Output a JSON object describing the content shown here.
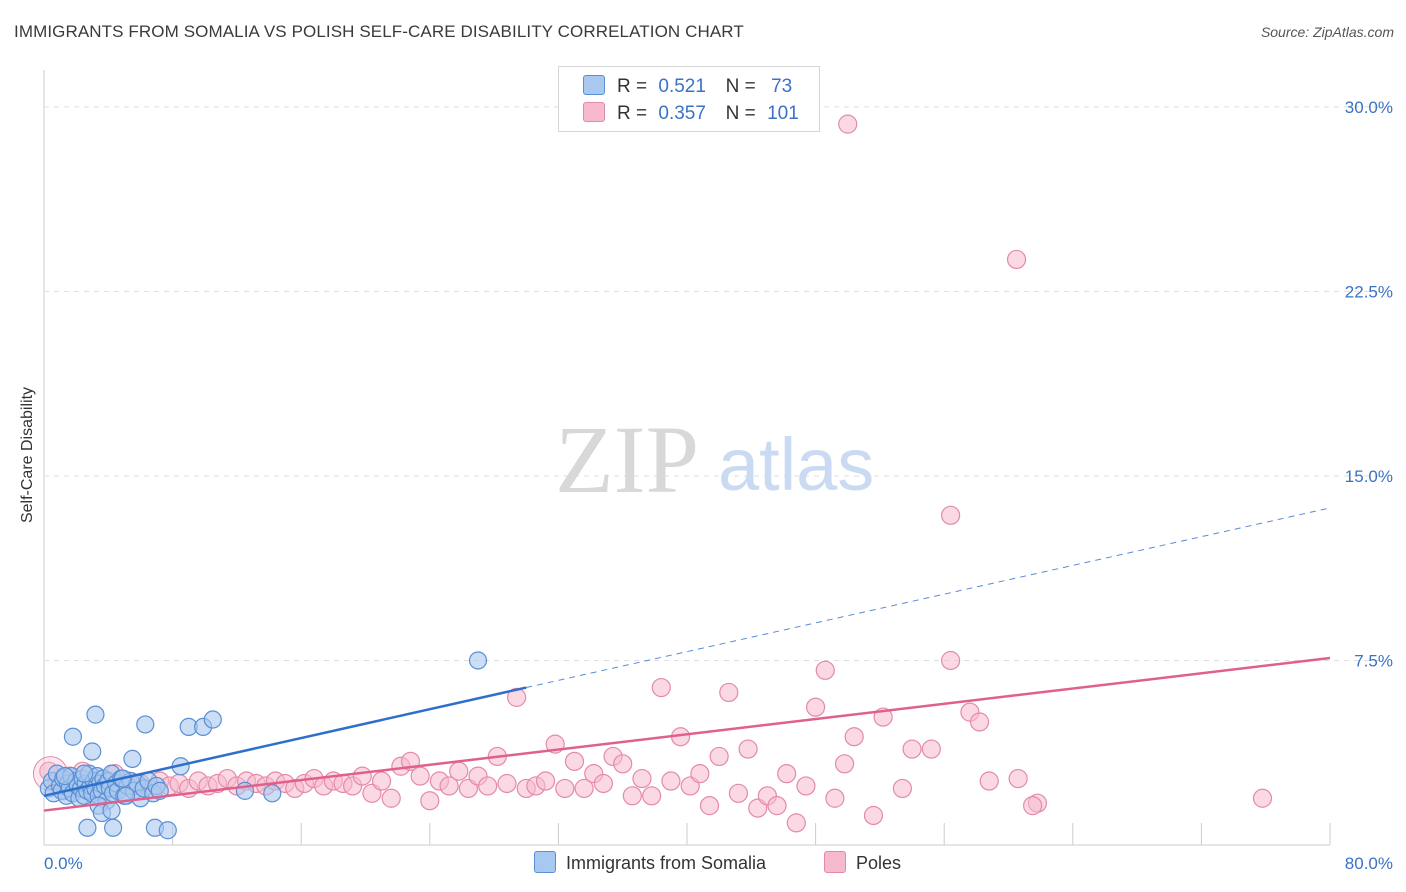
{
  "title": "IMMIGRANTS FROM SOMALIA VS POLISH SELF-CARE DISABILITY CORRELATION CHART",
  "source": "Source: ZipAtlas.com",
  "watermark": {
    "zip": "ZIP",
    "atlas": "atlas"
  },
  "legend": {
    "r_label": "R =",
    "n_label": "N =",
    "rows": [
      {
        "r": "0.521",
        "n": "73"
      },
      {
        "r": "0.357",
        "n": "101"
      }
    ]
  },
  "bottom_legend": [
    "Immigrants from Somalia",
    "Poles"
  ],
  "colors": {
    "somalia_fill": "#a9c8ef",
    "somalia_stroke": "#5a8fd6",
    "somalia_line": "#2f6fcc",
    "poles_fill": "#f7b9cd",
    "poles_stroke": "#e38aa8",
    "poles_line": "#e0608a",
    "grid": "#dddddd",
    "tick": "#3a72c6"
  },
  "chart_data": {
    "type": "scatter",
    "title": "IMMIGRANTS FROM SOMALIA VS POLISH SELF-CARE DISABILITY CORRELATION CHART",
    "xlabel": "",
    "ylabel": "Self-Care Disability",
    "xlim": [
      0,
      80
    ],
    "ylim": [
      0,
      31.5
    ],
    "x_ticks": [
      "0.0%",
      "80.0%"
    ],
    "y_ticks": [
      {
        "value": 7.5,
        "label": "7.5%"
      },
      {
        "value": 15.0,
        "label": "15.0%"
      },
      {
        "value": 22.5,
        "label": "22.5%"
      },
      {
        "value": 30.0,
        "label": "30.0%"
      }
    ],
    "grid": true,
    "legend_position": "top-center",
    "series": [
      {
        "name": "Immigrants from Somalia",
        "r": 0.521,
        "n": 73,
        "trend": {
          "x0": 0,
          "y0": 2.0,
          "x1": 30,
          "y1": 6.4,
          "x_dash_end": 80,
          "y_dash_end": 13.7
        },
        "points": [
          [
            0.3,
            2.3
          ],
          [
            0.5,
            2.6
          ],
          [
            0.6,
            2.1
          ],
          [
            0.8,
            2.9
          ],
          [
            1.0,
            2.4
          ],
          [
            1.1,
            2.2
          ],
          [
            1.2,
            2.7
          ],
          [
            1.4,
            2.0
          ],
          [
            1.5,
            2.5
          ],
          [
            1.6,
            2.3
          ],
          [
            1.7,
            2.8
          ],
          [
            1.8,
            2.1
          ],
          [
            2.0,
            2.6
          ],
          [
            2.1,
            2.4
          ],
          [
            2.2,
            1.9
          ],
          [
            2.3,
            2.3
          ],
          [
            2.4,
            2.7
          ],
          [
            2.5,
            2.0
          ],
          [
            2.6,
            2.5
          ],
          [
            2.7,
            2.2
          ],
          [
            2.8,
            2.9
          ],
          [
            2.9,
            2.4
          ],
          [
            3.0,
            2.1
          ],
          [
            3.1,
            2.6
          ],
          [
            3.2,
            2.3
          ],
          [
            3.3,
            2.8
          ],
          [
            3.4,
            2.0
          ],
          [
            3.5,
            2.5
          ],
          [
            3.6,
            2.2
          ],
          [
            3.7,
            2.7
          ],
          [
            3.8,
            2.4
          ],
          [
            3.9,
            1.8
          ],
          [
            4.0,
            2.6
          ],
          [
            4.1,
            2.3
          ],
          [
            4.2,
            2.9
          ],
          [
            4.3,
            2.1
          ],
          [
            4.5,
            2.5
          ],
          [
            4.6,
            2.2
          ],
          [
            4.8,
            2.7
          ],
          [
            5.0,
            2.0
          ],
          [
            5.2,
            2.4
          ],
          [
            5.4,
            2.6
          ],
          [
            5.6,
            2.2
          ],
          [
            5.8,
            2.5
          ],
          [
            6.0,
            1.9
          ],
          [
            6.2,
            2.3
          ],
          [
            6.5,
            2.6
          ],
          [
            6.8,
            2.1
          ],
          [
            7.0,
            2.4
          ],
          [
            7.2,
            2.2
          ],
          [
            1.8,
            4.4
          ],
          [
            3.0,
            3.8
          ],
          [
            3.2,
            5.3
          ],
          [
            5.5,
            3.5
          ],
          [
            6.3,
            4.9
          ],
          [
            8.5,
            3.2
          ],
          [
            9.0,
            4.8
          ],
          [
            9.9,
            4.8
          ],
          [
            10.5,
            5.1
          ],
          [
            12.5,
            2.2
          ],
          [
            14.2,
            2.1
          ],
          [
            27.0,
            7.5
          ],
          [
            2.7,
            0.7
          ],
          [
            4.3,
            0.7
          ],
          [
            6.9,
            0.7
          ],
          [
            7.7,
            0.6
          ],
          [
            3.4,
            1.6
          ],
          [
            3.6,
            1.3
          ],
          [
            4.2,
            1.4
          ],
          [
            5.1,
            2.0
          ],
          [
            4.9,
            2.7
          ],
          [
            2.5,
            2.9
          ],
          [
            1.3,
            2.8
          ]
        ]
      },
      {
        "name": "Poles",
        "r": 0.357,
        "n": 101,
        "trend": {
          "x0": 0,
          "y0": 1.4,
          "x1": 80,
          "y1": 7.6
        },
        "points": [
          [
            0.3,
            3.0
          ],
          [
            0.8,
            2.6
          ],
          [
            1.2,
            2.2
          ],
          [
            1.6,
            2.8
          ],
          [
            2.0,
            2.4
          ],
          [
            2.4,
            3.0
          ],
          [
            2.8,
            2.3
          ],
          [
            3.2,
            2.7
          ],
          [
            3.6,
            2.1
          ],
          [
            4.0,
            2.5
          ],
          [
            4.4,
            2.9
          ],
          [
            4.8,
            2.3
          ],
          [
            5.2,
            2.6
          ],
          [
            5.6,
            2.4
          ],
          [
            6.0,
            2.5
          ],
          [
            6.6,
            2.3
          ],
          [
            7.2,
            2.6
          ],
          [
            7.8,
            2.4
          ],
          [
            8.4,
            2.5
          ],
          [
            9.0,
            2.3
          ],
          [
            9.6,
            2.6
          ],
          [
            10.2,
            2.4
          ],
          [
            10.8,
            2.5
          ],
          [
            11.4,
            2.7
          ],
          [
            12.0,
            2.4
          ],
          [
            12.6,
            2.6
          ],
          [
            13.2,
            2.5
          ],
          [
            13.8,
            2.4
          ],
          [
            14.4,
            2.6
          ],
          [
            15.0,
            2.5
          ],
          [
            15.6,
            2.3
          ],
          [
            16.2,
            2.5
          ],
          [
            16.8,
            2.7
          ],
          [
            17.4,
            2.4
          ],
          [
            18.0,
            2.6
          ],
          [
            18.6,
            2.5
          ],
          [
            19.2,
            2.4
          ],
          [
            19.8,
            2.8
          ],
          [
            20.4,
            2.1
          ],
          [
            21.0,
            2.6
          ],
          [
            21.6,
            1.9
          ],
          [
            22.2,
            3.2
          ],
          [
            22.8,
            3.4
          ],
          [
            23.4,
            2.8
          ],
          [
            24.0,
            1.8
          ],
          [
            24.6,
            2.6
          ],
          [
            25.2,
            2.4
          ],
          [
            25.8,
            3.0
          ],
          [
            26.4,
            2.3
          ],
          [
            27.0,
            2.8
          ],
          [
            27.6,
            2.4
          ],
          [
            28.2,
            3.6
          ],
          [
            28.8,
            2.5
          ],
          [
            29.4,
            6.0
          ],
          [
            30.0,
            2.3
          ],
          [
            30.6,
            2.4
          ],
          [
            31.2,
            2.6
          ],
          [
            31.8,
            4.1
          ],
          [
            32.4,
            2.3
          ],
          [
            33.0,
            3.4
          ],
          [
            33.6,
            2.3
          ],
          [
            34.2,
            2.9
          ],
          [
            34.8,
            2.5
          ],
          [
            35.4,
            3.6
          ],
          [
            36.0,
            3.3
          ],
          [
            36.6,
            2.0
          ],
          [
            37.2,
            2.7
          ],
          [
            37.8,
            2.0
          ],
          [
            38.4,
            6.4
          ],
          [
            39.0,
            2.6
          ],
          [
            39.6,
            4.4
          ],
          [
            40.2,
            2.4
          ],
          [
            40.8,
            2.9
          ],
          [
            41.4,
            1.6
          ],
          [
            42.0,
            3.6
          ],
          [
            42.6,
            6.2
          ],
          [
            43.2,
            2.1
          ],
          [
            43.8,
            3.9
          ],
          [
            44.4,
            1.5
          ],
          [
            45.0,
            2.0
          ],
          [
            45.6,
            1.6
          ],
          [
            46.2,
            2.9
          ],
          [
            46.8,
            0.9
          ],
          [
            47.4,
            2.4
          ],
          [
            48.0,
            5.6
          ],
          [
            48.6,
            7.1
          ],
          [
            49.2,
            1.9
          ],
          [
            49.8,
            3.3
          ],
          [
            50.4,
            4.4
          ],
          [
            51.6,
            1.2
          ],
          [
            52.2,
            5.2
          ],
          [
            53.4,
            2.3
          ],
          [
            54.0,
            3.9
          ],
          [
            55.2,
            3.9
          ],
          [
            56.4,
            7.5
          ],
          [
            56.4,
            13.4
          ],
          [
            57.6,
            5.4
          ],
          [
            58.2,
            5.0
          ],
          [
            58.8,
            2.6
          ],
          [
            60.6,
            2.7
          ],
          [
            61.8,
            1.7
          ]
        ],
        "outliers": [
          [
            50.0,
            29.3
          ],
          [
            60.5,
            23.8
          ],
          [
            61.5,
            1.6
          ],
          [
            75.8,
            1.9
          ]
        ]
      }
    ]
  }
}
